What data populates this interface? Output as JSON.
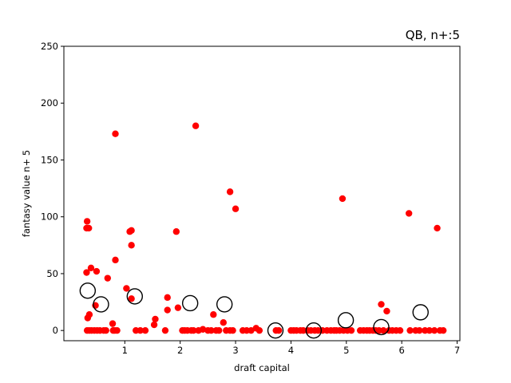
{
  "chart_data": {
    "type": "scatter",
    "title": "QB, n+:5",
    "xlabel": "draft capital",
    "ylabel": "fantasy value n+ 5",
    "xlim": [
      -0.1,
      7.05
    ],
    "ylim": [
      -9,
      250
    ],
    "xticks": [
      1,
      2,
      3,
      4,
      5,
      6,
      7
    ],
    "yticks": [
      0,
      50,
      100,
      150,
      200,
      250
    ],
    "grid": false,
    "series": [
      {
        "marker": "filled-circle",
        "color": "#ff0000",
        "points": [
          [
            0.32,
            96
          ],
          [
            0.31,
            90
          ],
          [
            0.35,
            90
          ],
          [
            0.31,
            51
          ],
          [
            0.39,
            55
          ],
          [
            0.49,
            52
          ],
          [
            0.36,
            14
          ],
          [
            0.33,
            11
          ],
          [
            0.47,
            22
          ],
          [
            0.32,
            0
          ],
          [
            0.36,
            0
          ],
          [
            0.4,
            0
          ],
          [
            0.45,
            0
          ],
          [
            0.5,
            0
          ],
          [
            0.55,
            0
          ],
          [
            0.62,
            0
          ],
          [
            0.66,
            0
          ],
          [
            0.69,
            46
          ],
          [
            0.78,
            6
          ],
          [
            0.83,
            173
          ],
          [
            0.83,
            62
          ],
          [
            0.79,
            0
          ],
          [
            0.82,
            0
          ],
          [
            0.86,
            0
          ],
          [
            1.03,
            37
          ],
          [
            1.09,
            87
          ],
          [
            1.12,
            88
          ],
          [
            1.12,
            75
          ],
          [
            1.12,
            28
          ],
          [
            1.2,
            0
          ],
          [
            1.28,
            0
          ],
          [
            1.37,
            0
          ],
          [
            1.53,
            5
          ],
          [
            1.55,
            10
          ],
          [
            1.73,
            0
          ],
          [
            1.77,
            29
          ],
          [
            1.77,
            18
          ],
          [
            1.93,
            87
          ],
          [
            1.96,
            20
          ],
          [
            2.04,
            0
          ],
          [
            2.08,
            0
          ],
          [
            2.13,
            0
          ],
          [
            2.2,
            0
          ],
          [
            2.24,
            0
          ],
          [
            2.28,
            180
          ],
          [
            2.33,
            0
          ],
          [
            2.41,
            1
          ],
          [
            2.5,
            0
          ],
          [
            2.56,
            0
          ],
          [
            2.6,
            14
          ],
          [
            2.65,
            0
          ],
          [
            2.7,
            0
          ],
          [
            2.78,
            7
          ],
          [
            2.83,
            0
          ],
          [
            2.9,
            122
          ],
          [
            2.9,
            0
          ],
          [
            2.95,
            0
          ],
          [
            3.0,
            107
          ],
          [
            3.13,
            0
          ],
          [
            3.2,
            0
          ],
          [
            3.28,
            0
          ],
          [
            3.37,
            2
          ],
          [
            3.43,
            0
          ],
          [
            3.73,
            0
          ],
          [
            3.78,
            0
          ],
          [
            4.0,
            0
          ],
          [
            4.05,
            0
          ],
          [
            4.1,
            0
          ],
          [
            4.17,
            0
          ],
          [
            4.22,
            0
          ],
          [
            4.3,
            0
          ],
          [
            4.36,
            0
          ],
          [
            4.43,
            0
          ],
          [
            4.49,
            0
          ],
          [
            4.57,
            0
          ],
          [
            4.65,
            0
          ],
          [
            4.72,
            0
          ],
          [
            4.78,
            0
          ],
          [
            4.82,
            0
          ],
          [
            4.88,
            0
          ],
          [
            4.93,
            116
          ],
          [
            4.95,
            0
          ],
          [
            5.02,
            0
          ],
          [
            5.09,
            0
          ],
          [
            5.25,
            0
          ],
          [
            5.31,
            0
          ],
          [
            5.37,
            0
          ],
          [
            5.42,
            0
          ],
          [
            5.48,
            0
          ],
          [
            5.53,
            0
          ],
          [
            5.59,
            0
          ],
          [
            5.63,
            23
          ],
          [
            5.67,
            0
          ],
          [
            5.73,
            17
          ],
          [
            5.77,
            0
          ],
          [
            5.83,
            0
          ],
          [
            5.9,
            0
          ],
          [
            5.97,
            0
          ],
          [
            6.13,
            103
          ],
          [
            6.15,
            0
          ],
          [
            6.25,
            0
          ],
          [
            6.32,
            0
          ],
          [
            6.42,
            0
          ],
          [
            6.5,
            0
          ],
          [
            6.59,
            0
          ],
          [
            6.64,
            90
          ],
          [
            6.69,
            0
          ],
          [
            6.75,
            0
          ]
        ]
      },
      {
        "marker": "open-circle",
        "color": "#000000",
        "points": [
          [
            0.33,
            35
          ],
          [
            0.57,
            23
          ],
          [
            1.18,
            30
          ],
          [
            2.18,
            24
          ],
          [
            2.8,
            23
          ],
          [
            3.72,
            0
          ],
          [
            4.41,
            0
          ],
          [
            4.99,
            9
          ],
          [
            5.63,
            3
          ],
          [
            6.34,
            16
          ]
        ]
      }
    ]
  }
}
